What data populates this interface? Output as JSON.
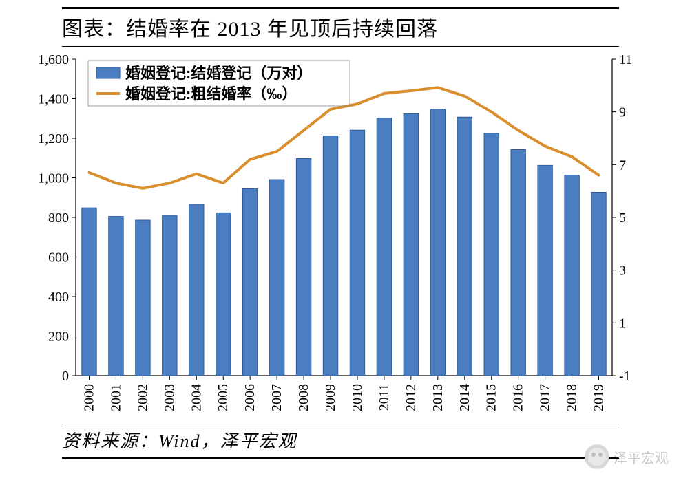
{
  "title": "图表：结婚率在 2013 年见顶后持续回落",
  "source": "资料来源：Wind，泽平宏观",
  "watermark": "泽平宏观",
  "chart": {
    "type": "bar+line",
    "background_color": "#ffffff",
    "legend": {
      "bar_label": "婚姻登记:结婚登记（万对）",
      "line_label": "婚姻登记:粗结婚率（‰）",
      "bar_color": "#4a7ec0",
      "bar_border": "#2f5a96",
      "line_color": "#d98f2e",
      "line_width": 4
    },
    "categories": [
      "2000",
      "2001",
      "2002",
      "2003",
      "2004",
      "2005",
      "2006",
      "2007",
      "2008",
      "2009",
      "2010",
      "2011",
      "2012",
      "2013",
      "2014",
      "2015",
      "2016",
      "2017",
      "2018",
      "2019"
    ],
    "bar_values": [
      848,
      805,
      786,
      811,
      867,
      823,
      945,
      991,
      1098,
      1212,
      1241,
      1302,
      1324,
      1347,
      1307,
      1225,
      1143,
      1063,
      1014,
      927
    ],
    "line_values": [
      6.7,
      6.3,
      6.1,
      6.3,
      6.65,
      6.3,
      7.2,
      7.5,
      8.3,
      9.1,
      9.3,
      9.7,
      9.8,
      9.92,
      9.6,
      9.0,
      8.3,
      7.7,
      7.3,
      6.6
    ],
    "y_left": {
      "min": 0,
      "max": 1600,
      "step": 200
    },
    "y_right": {
      "min": -1,
      "max": 11,
      "step": 2
    },
    "bar_width_ratio": 0.55,
    "axis_color": "#000000",
    "font_axis": 20
  }
}
